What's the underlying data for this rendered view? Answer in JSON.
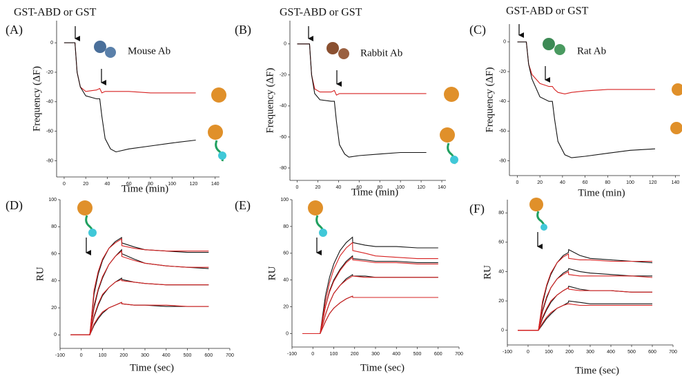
{
  "chart_data": [
    {
      "type": "line",
      "panel_label": "(A)",
      "annotation": "GST-ABD or GST",
      "antibody_label": "Mouse Ab",
      "x_label": "Time (min)",
      "y_label": "Frequency (ΔF)",
      "xlim": [
        -7,
        144
      ],
      "ylim": [
        -91,
        15
      ],
      "xticks": [
        0,
        20,
        40,
        60,
        80,
        100,
        120,
        140
      ],
      "yticks": [
        0,
        -20,
        -40,
        -60,
        -80
      ],
      "x": [
        0,
        10,
        12,
        15,
        20,
        30,
        33,
        35,
        38,
        43,
        48,
        60,
        80,
        100,
        122
      ],
      "series": [
        {
          "color": "#d62020",
          "values": [
            0,
            0,
            -20,
            -30,
            -33,
            -32,
            -31,
            -34,
            -33,
            -33,
            -33,
            -33,
            -34,
            -34,
            -34
          ]
        },
        {
          "color": "#111111",
          "values": [
            0,
            0,
            -20,
            -30,
            -36,
            -38,
            -38,
            -50,
            -65,
            -72,
            -74,
            -72,
            -70,
            -68,
            -66
          ]
        }
      ]
    },
    {
      "type": "line",
      "panel_label": "(B)",
      "annotation": "GST-ABD or GST",
      "antibody_label": "Rabbit Ab",
      "x_label": "Time (min)",
      "y_label": "Frequency (ΔF)",
      "xlim": [
        -7,
        144
      ],
      "ylim": [
        -88,
        15
      ],
      "xticks": [
        0,
        20,
        40,
        60,
        80,
        100,
        120,
        140
      ],
      "yticks": [
        0,
        -20,
        -40,
        -60,
        -80
      ],
      "x": [
        0,
        12,
        14,
        17,
        22,
        33,
        36,
        38,
        41,
        46,
        50,
        60,
        80,
        100,
        125
      ],
      "series": [
        {
          "color": "#d62020",
          "values": [
            0,
            0,
            -20,
            -29,
            -31,
            -31,
            -30,
            -33,
            -32,
            -32,
            -32,
            -32,
            -32,
            -32,
            -32
          ]
        },
        {
          "color": "#111111",
          "values": [
            0,
            0,
            -20,
            -32,
            -36,
            -37,
            -37,
            -50,
            -65,
            -71,
            -73,
            -72,
            -71,
            -70,
            -70
          ]
        }
      ]
    },
    {
      "type": "line",
      "panel_label": "(C)",
      "annotation": "GST-ABD or GST",
      "antibody_label": "Rat Ab",
      "x_label": "Time (min)",
      "y_label": "Frequency (ΔF)",
      "xlim": [
        -7,
        144
      ],
      "ylim": [
        -90,
        12
      ],
      "xticks": [
        0,
        20,
        40,
        60,
        80,
        100,
        120,
        140
      ],
      "yticks": [
        0,
        -20,
        -40,
        -60,
        -80
      ],
      "x": [
        0,
        8,
        10,
        13,
        20,
        28,
        31,
        33,
        36,
        42,
        48,
        60,
        80,
        100,
        122
      ],
      "series": [
        {
          "color": "#d62020",
          "values": [
            0,
            0,
            -15,
            -22,
            -28,
            -30,
            -30,
            -32,
            -34,
            -35,
            -34,
            -33,
            -32,
            -32,
            -32
          ]
        },
        {
          "color": "#111111",
          "values": [
            0,
            0,
            -15,
            -25,
            -37,
            -40,
            -40,
            -52,
            -67,
            -76,
            -78,
            -77,
            -75,
            -73,
            -72
          ]
        }
      ]
    },
    {
      "type": "line",
      "panel_label": "(D)",
      "x_label": "Time (sec)",
      "y_label": "RU",
      "xlim": [
        -100,
        700
      ],
      "ylim": [
        -10,
        100
      ],
      "xticks": [
        -100,
        0,
        100,
        200,
        300,
        400,
        500,
        600,
        700
      ],
      "yticks": [
        0,
        20,
        40,
        60,
        80,
        100
      ],
      "x": [
        -50,
        40,
        60,
        80,
        100,
        130,
        160,
        190,
        191,
        250,
        300,
        400,
        500,
        600
      ],
      "series": [
        {
          "color": "#111111",
          "values": [
            0,
            0,
            30,
            45,
            55,
            64,
            69,
            72,
            68,
            65,
            63,
            62,
            61,
            61
          ]
        },
        {
          "color": "#111111",
          "values": [
            0,
            0,
            20,
            33,
            42,
            52,
            58,
            63,
            60,
            56,
            53,
            51,
            50,
            49
          ]
        },
        {
          "color": "#111111",
          "values": [
            0,
            0,
            13,
            22,
            29,
            35,
            39,
            42,
            41,
            39,
            38,
            37,
            37,
            37
          ]
        },
        {
          "color": "#111111",
          "values": [
            0,
            0,
            7,
            12,
            16,
            20,
            22,
            24,
            23,
            22,
            22,
            21,
            21,
            21
          ]
        },
        {
          "color": "#d62020",
          "values": [
            0,
            0,
            33,
            47,
            56,
            64,
            68,
            71,
            66,
            64,
            63,
            62,
            62,
            62
          ]
        },
        {
          "color": "#d62020",
          "values": [
            0,
            0,
            22,
            34,
            43,
            52,
            58,
            62,
            58,
            55,
            53,
            51,
            50,
            50
          ]
        },
        {
          "color": "#d62020",
          "values": [
            0,
            0,
            14,
            23,
            30,
            35,
            39,
            41,
            40,
            39,
            38,
            37,
            37,
            37
          ]
        },
        {
          "color": "#d62020",
          "values": [
            0,
            0,
            8,
            13,
            17,
            20,
            22,
            24,
            23,
            22,
            22,
            22,
            21,
            21
          ]
        }
      ]
    },
    {
      "type": "line",
      "panel_label": "(E)",
      "x_label": "Time (sec)",
      "y_label": "RU",
      "xlim": [
        -100,
        700
      ],
      "ylim": [
        -10,
        100
      ],
      "xticks": [
        -100,
        0,
        100,
        200,
        300,
        400,
        500,
        600,
        700
      ],
      "yticks": [
        0,
        20,
        40,
        60,
        80,
        100
      ],
      "x": [
        -50,
        35,
        60,
        80,
        100,
        130,
        160,
        190,
        191,
        250,
        300,
        400,
        500,
        600
      ],
      "series": [
        {
          "color": "#111111",
          "values": [
            0,
            0,
            28,
            42,
            52,
            62,
            68,
            72,
            68,
            66,
            65,
            65,
            64,
            64
          ]
        },
        {
          "color": "#111111",
          "values": [
            0,
            0,
            20,
            32,
            40,
            48,
            54,
            58,
            56,
            55,
            54,
            54,
            53,
            53
          ]
        },
        {
          "color": "#111111",
          "values": [
            0,
            0,
            14,
            23,
            30,
            36,
            41,
            44,
            43,
            43,
            42,
            42,
            42,
            42
          ]
        },
        {
          "color": "#111111",
          "values": [
            0,
            0,
            9,
            15,
            19,
            23,
            26,
            28,
            27,
            27,
            27,
            27,
            27,
            27
          ]
        },
        {
          "color": "#d62020",
          "values": [
            0,
            0,
            24,
            38,
            48,
            58,
            64,
            68,
            62,
            60,
            58,
            57,
            56,
            56
          ]
        },
        {
          "color": "#d62020",
          "values": [
            0,
            0,
            20,
            31,
            39,
            47,
            53,
            57,
            55,
            54,
            53,
            53,
            52,
            52
          ]
        },
        {
          "color": "#d62020",
          "values": [
            0,
            0,
            14,
            23,
            30,
            36,
            40,
            43,
            43,
            42,
            42,
            42,
            42,
            42
          ]
        },
        {
          "color": "#d62020",
          "values": [
            0,
            0,
            9,
            15,
            19,
            23,
            26,
            28,
            27,
            27,
            27,
            27,
            27,
            27
          ]
        }
      ]
    },
    {
      "type": "line",
      "panel_label": "(F)",
      "x_label": "Time (sec)",
      "y_label": "RU",
      "xlim": [
        -100,
        700
      ],
      "ylim": [
        -10,
        89
      ],
      "xticks": [
        -100,
        0,
        100,
        200,
        300,
        400,
        500,
        600,
        700
      ],
      "yticks": [
        0,
        20,
        40,
        60,
        80
      ],
      "x": [
        -50,
        50,
        70,
        90,
        110,
        140,
        170,
        195,
        196,
        250,
        300,
        400,
        500,
        600
      ],
      "series": [
        {
          "color": "#111111",
          "values": [
            0,
            0,
            18,
            30,
            38,
            46,
            51,
            53,
            55,
            51,
            49,
            48,
            47,
            46
          ]
        },
        {
          "color": "#111111",
          "values": [
            0,
            0,
            13,
            22,
            29,
            35,
            39,
            41,
            42,
            40,
            39,
            38,
            37,
            37
          ]
        },
        {
          "color": "#111111",
          "values": [
            0,
            0,
            8,
            14,
            19,
            24,
            27,
            29,
            30,
            28,
            27,
            27,
            26,
            26
          ]
        },
        {
          "color": "#111111",
          "values": [
            0,
            0,
            4,
            8,
            11,
            15,
            17,
            19,
            20,
            19,
            18,
            18,
            18,
            18
          ]
        },
        {
          "color": "#d62020",
          "values": [
            0,
            0,
            20,
            31,
            39,
            46,
            50,
            52,
            49,
            48,
            48,
            47,
            47,
            47
          ]
        },
        {
          "color": "#d62020",
          "values": [
            0,
            0,
            14,
            23,
            29,
            35,
            38,
            40,
            38,
            37,
            37,
            37,
            37,
            36
          ]
        },
        {
          "color": "#d62020",
          "values": [
            0,
            0,
            9,
            15,
            20,
            24,
            27,
            29,
            28,
            27,
            27,
            27,
            26,
            26
          ]
        },
        {
          "color": "#d62020",
          "values": [
            0,
            0,
            5,
            9,
            12,
            15,
            17,
            18,
            18,
            17,
            17,
            17,
            17,
            17
          ]
        }
      ]
    }
  ]
}
